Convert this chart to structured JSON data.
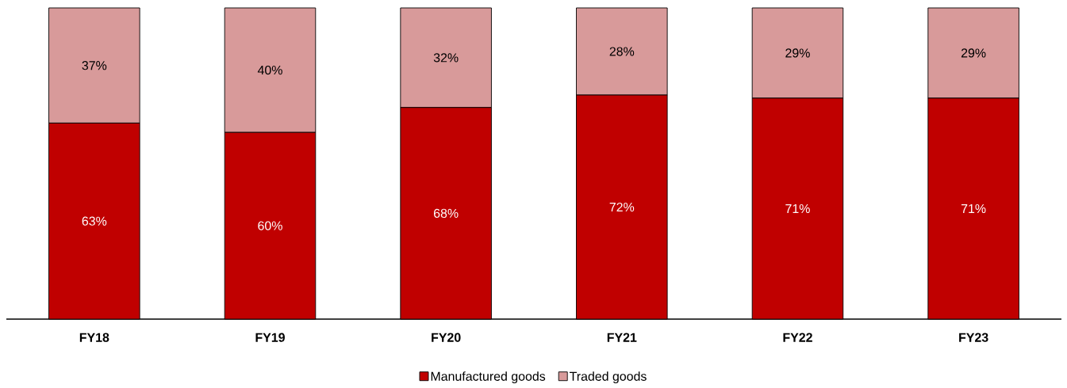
{
  "chart_data": {
    "type": "bar",
    "stacked": true,
    "categories": [
      "FY18",
      "FY19",
      "FY20",
      "FY21",
      "FY22",
      "FY23"
    ],
    "ylim": [
      0,
      100
    ],
    "series": [
      {
        "name": "Manufactured goods",
        "color": "#c00000",
        "values": [
          63,
          60,
          68,
          72,
          71,
          71
        ],
        "value_labels": [
          "63%",
          "60%",
          "68%",
          "72%",
          "71%",
          "71%"
        ]
      },
      {
        "name": "Traded goods",
        "color": "#d89a9a",
        "values": [
          37,
          40,
          32,
          28,
          29,
          29
        ],
        "value_labels": [
          "37%",
          "40%",
          "32%",
          "28%",
          "29%",
          "29%"
        ]
      }
    ],
    "legend": "bottom"
  }
}
